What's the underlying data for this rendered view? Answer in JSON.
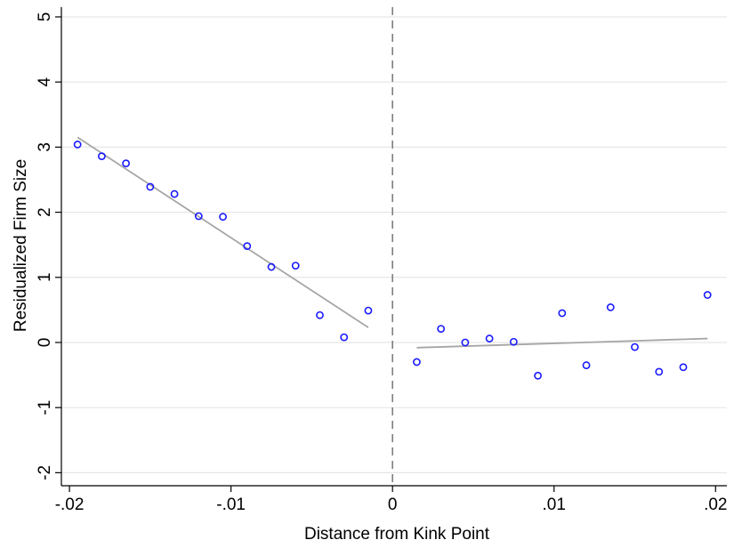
{
  "chart_data": {
    "type": "scatter",
    "xlabel": "Distance from Kink Point",
    "ylabel": "Residualized Firm Size",
    "xlim": [
      -0.0205,
      0.0207
    ],
    "ylim": [
      -2.2,
      5.15
    ],
    "x_ticks": [
      -0.02,
      -0.01,
      0,
      0.01,
      0.02
    ],
    "x_tick_labels": [
      "-.02",
      "-.01",
      "0",
      ".01",
      ".02"
    ],
    "y_ticks": [
      -2,
      -1,
      0,
      1,
      2,
      3,
      4,
      5
    ],
    "y_tick_labels": [
      "-2",
      "-1",
      "0",
      "1",
      "2",
      "3",
      "4",
      "5"
    ],
    "grid": "horizontal",
    "kink_line_x": 0,
    "points_left": [
      [
        -0.0195,
        3.04
      ],
      [
        -0.018,
        2.86
      ],
      [
        -0.0165,
        2.75
      ],
      [
        -0.015,
        2.39
      ],
      [
        -0.0135,
        2.28
      ],
      [
        -0.012,
        1.94
      ],
      [
        -0.0105,
        1.93
      ],
      [
        -0.009,
        1.48
      ],
      [
        -0.0075,
        1.16
      ],
      [
        -0.006,
        1.18
      ],
      [
        -0.0045,
        0.42
      ],
      [
        -0.003,
        0.08
      ],
      [
        -0.0015,
        0.49
      ]
    ],
    "points_right": [
      [
        0.0015,
        -0.3
      ],
      [
        0.003,
        0.21
      ],
      [
        0.0045,
        0.0
      ],
      [
        0.006,
        0.06
      ],
      [
        0.0075,
        0.01
      ],
      [
        0.009,
        -0.51
      ],
      [
        0.0105,
        0.45
      ],
      [
        0.012,
        -0.35
      ],
      [
        0.0135,
        0.54
      ],
      [
        0.015,
        -0.07
      ],
      [
        0.0165,
        -0.45
      ],
      [
        0.018,
        -0.38
      ],
      [
        0.0195,
        0.73
      ]
    ],
    "fit_left": [
      [
        -0.0195,
        3.15
      ],
      [
        -0.0015,
        0.23
      ]
    ],
    "fit_right": [
      [
        0.0015,
        -0.08
      ],
      [
        0.0195,
        0.06
      ]
    ],
    "colors": {
      "marker": "#1a1aff",
      "fit_line": "#a6a6a6",
      "grid": "#e6e6e6",
      "axis": "#000000",
      "kink_line": "#7f7f7f"
    }
  }
}
